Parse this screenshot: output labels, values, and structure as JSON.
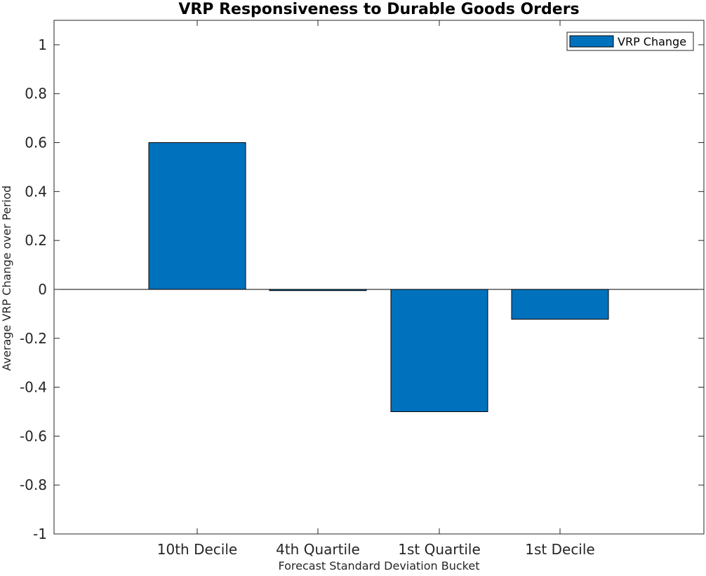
{
  "chart_data": {
    "type": "bar",
    "title": "VRP Responsiveness to Durable Goods Orders",
    "xlabel": "Forecast Standard Deviation Bucket",
    "ylabel": "Average VRP Change over Period",
    "categories": [
      "10th Decile",
      "4th Quartile",
      "1st Quartile",
      "1st Decile"
    ],
    "series": [
      {
        "name": "VRP Change",
        "values": [
          0.6,
          -0.005,
          -0.5,
          -0.122
        ]
      }
    ],
    "ylim": [
      -1,
      1.1
    ],
    "yticks": [
      1,
      0.8,
      0.6,
      0.4,
      0.2,
      0,
      -0.2,
      -0.4,
      -0.6,
      -0.8,
      -1
    ],
    "ytick_labels": [
      "1",
      "0.8",
      "0.6",
      "0.4",
      "0.2",
      "0",
      "-0.2",
      "-0.4",
      "-0.6",
      "-0.8",
      "-1"
    ],
    "grid": false,
    "legend_position": "top-right",
    "colors": {
      "bar": "#0072BD",
      "axis": "#262626",
      "zero_line": "#000000"
    }
  }
}
